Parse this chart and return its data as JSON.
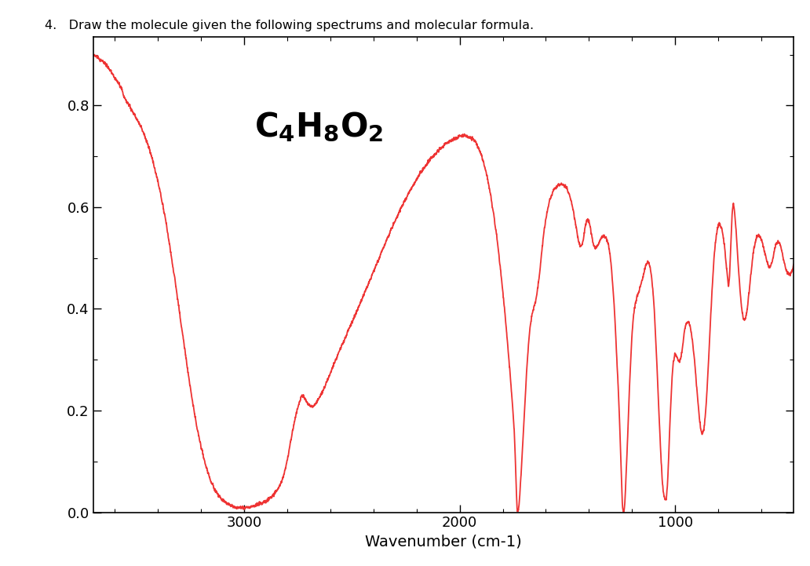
{
  "title": "4.   Draw the molecule given the following spectrums and molecular formula.",
  "xlabel": "Wavenumber (cm-1)",
  "line_color": "#EE3333",
  "background_color": "#ffffff",
  "xlim": [
    3700,
    450
  ],
  "ylim": [
    0.0,
    0.935
  ],
  "yticks": [
    0.0,
    0.2,
    0.4,
    0.6,
    0.8
  ],
  "xticks": [
    3000,
    2000,
    1000
  ],
  "keypoints": [
    [
      3700,
      0.9
    ],
    [
      3680,
      0.895
    ],
    [
      3650,
      0.885
    ],
    [
      3620,
      0.87
    ],
    [
      3600,
      0.855
    ],
    [
      3570,
      0.835
    ],
    [
      3550,
      0.81
    ],
    [
      3520,
      0.79
    ],
    [
      3500,
      0.775
    ],
    [
      3480,
      0.76
    ],
    [
      3460,
      0.74
    ],
    [
      3440,
      0.715
    ],
    [
      3420,
      0.685
    ],
    [
      3400,
      0.65
    ],
    [
      3380,
      0.61
    ],
    [
      3360,
      0.565
    ],
    [
      3340,
      0.51
    ],
    [
      3320,
      0.455
    ],
    [
      3300,
      0.395
    ],
    [
      3280,
      0.335
    ],
    [
      3260,
      0.275
    ],
    [
      3240,
      0.22
    ],
    [
      3220,
      0.17
    ],
    [
      3200,
      0.13
    ],
    [
      3180,
      0.095
    ],
    [
      3160,
      0.068
    ],
    [
      3140,
      0.048
    ],
    [
      3120,
      0.034
    ],
    [
      3100,
      0.024
    ],
    [
      3080,
      0.017
    ],
    [
      3060,
      0.013
    ],
    [
      3040,
      0.01
    ],
    [
      3020,
      0.009
    ],
    [
      3000,
      0.009
    ],
    [
      2980,
      0.01
    ],
    [
      2960,
      0.012
    ],
    [
      2950,
      0.013
    ],
    [
      2940,
      0.015
    ],
    [
      2930,
      0.017
    ],
    [
      2920,
      0.018
    ],
    [
      2910,
      0.019
    ],
    [
      2900,
      0.021
    ],
    [
      2890,
      0.024
    ],
    [
      2880,
      0.027
    ],
    [
      2870,
      0.031
    ],
    [
      2860,
      0.036
    ],
    [
      2850,
      0.041
    ],
    [
      2840,
      0.048
    ],
    [
      2830,
      0.057
    ],
    [
      2820,
      0.068
    ],
    [
      2810,
      0.083
    ],
    [
      2800,
      0.102
    ],
    [
      2790,
      0.124
    ],
    [
      2780,
      0.148
    ],
    [
      2770,
      0.17
    ],
    [
      2760,
      0.191
    ],
    [
      2750,
      0.208
    ],
    [
      2745,
      0.215
    ],
    [
      2740,
      0.221
    ],
    [
      2735,
      0.225
    ],
    [
      2730,
      0.227
    ],
    [
      2725,
      0.228
    ],
    [
      2720,
      0.226
    ],
    [
      2715,
      0.222
    ],
    [
      2710,
      0.218
    ],
    [
      2705,
      0.214
    ],
    [
      2700,
      0.211
    ],
    [
      2690,
      0.208
    ],
    [
      2680,
      0.208
    ],
    [
      2670,
      0.212
    ],
    [
      2660,
      0.218
    ],
    [
      2650,
      0.226
    ],
    [
      2640,
      0.234
    ],
    [
      2630,
      0.243
    ],
    [
      2620,
      0.253
    ],
    [
      2610,
      0.263
    ],
    [
      2600,
      0.274
    ],
    [
      2580,
      0.295
    ],
    [
      2560,
      0.315
    ],
    [
      2540,
      0.334
    ],
    [
      2520,
      0.354
    ],
    [
      2500,
      0.373
    ],
    [
      2480,
      0.393
    ],
    [
      2460,
      0.413
    ],
    [
      2440,
      0.433
    ],
    [
      2420,
      0.453
    ],
    [
      2400,
      0.473
    ],
    [
      2380,
      0.494
    ],
    [
      2360,
      0.514
    ],
    [
      2340,
      0.534
    ],
    [
      2320,
      0.554
    ],
    [
      2300,
      0.573
    ],
    [
      2280,
      0.591
    ],
    [
      2260,
      0.609
    ],
    [
      2240,
      0.625
    ],
    [
      2220,
      0.64
    ],
    [
      2200,
      0.655
    ],
    [
      2180,
      0.668
    ],
    [
      2160,
      0.68
    ],
    [
      2140,
      0.692
    ],
    [
      2120,
      0.702
    ],
    [
      2100,
      0.711
    ],
    [
      2080,
      0.719
    ],
    [
      2060,
      0.726
    ],
    [
      2040,
      0.731
    ],
    [
      2020,
      0.736
    ],
    [
      2000,
      0.739
    ],
    [
      1980,
      0.74
    ],
    [
      1960,
      0.739
    ],
    [
      1950,
      0.738
    ],
    [
      1940,
      0.735
    ],
    [
      1930,
      0.73
    ],
    [
      1920,
      0.723
    ],
    [
      1910,
      0.714
    ],
    [
      1900,
      0.703
    ],
    [
      1890,
      0.689
    ],
    [
      1880,
      0.673
    ],
    [
      1870,
      0.654
    ],
    [
      1860,
      0.632
    ],
    [
      1850,
      0.607
    ],
    [
      1840,
      0.579
    ],
    [
      1830,
      0.548
    ],
    [
      1820,
      0.514
    ],
    [
      1810,
      0.476
    ],
    [
      1800,
      0.435
    ],
    [
      1790,
      0.391
    ],
    [
      1780,
      0.344
    ],
    [
      1770,
      0.293
    ],
    [
      1760,
      0.24
    ],
    [
      1755,
      0.212
    ],
    [
      1750,
      0.182
    ],
    [
      1748,
      0.168
    ],
    [
      1746,
      0.152
    ],
    [
      1744,
      0.132
    ],
    [
      1742,
      0.108
    ],
    [
      1740,
      0.08
    ],
    [
      1738,
      0.052
    ],
    [
      1736,
      0.028
    ],
    [
      1734,
      0.012
    ],
    [
      1732,
      0.004
    ],
    [
      1730,
      0.002
    ],
    [
      1728,
      0.003
    ],
    [
      1726,
      0.008
    ],
    [
      1724,
      0.016
    ],
    [
      1722,
      0.028
    ],
    [
      1720,
      0.043
    ],
    [
      1715,
      0.076
    ],
    [
      1710,
      0.113
    ],
    [
      1705,
      0.152
    ],
    [
      1700,
      0.192
    ],
    [
      1695,
      0.233
    ],
    [
      1690,
      0.271
    ],
    [
      1685,
      0.305
    ],
    [
      1680,
      0.334
    ],
    [
      1675,
      0.357
    ],
    [
      1670,
      0.374
    ],
    [
      1665,
      0.387
    ],
    [
      1660,
      0.396
    ],
    [
      1655,
      0.404
    ],
    [
      1650,
      0.412
    ],
    [
      1645,
      0.422
    ],
    [
      1640,
      0.434
    ],
    [
      1635,
      0.449
    ],
    [
      1630,
      0.467
    ],
    [
      1625,
      0.487
    ],
    [
      1620,
      0.508
    ],
    [
      1615,
      0.528
    ],
    [
      1610,
      0.547
    ],
    [
      1605,
      0.563
    ],
    [
      1600,
      0.577
    ],
    [
      1590,
      0.6
    ],
    [
      1580,
      0.617
    ],
    [
      1570,
      0.628
    ],
    [
      1560,
      0.636
    ],
    [
      1550,
      0.641
    ],
    [
      1540,
      0.644
    ],
    [
      1530,
      0.645
    ],
    [
      1520,
      0.644
    ],
    [
      1510,
      0.64
    ],
    [
      1500,
      0.633
    ],
    [
      1490,
      0.622
    ],
    [
      1480,
      0.607
    ],
    [
      1470,
      0.586
    ],
    [
      1460,
      0.561
    ],
    [
      1455,
      0.548
    ],
    [
      1450,
      0.536
    ],
    [
      1445,
      0.527
    ],
    [
      1440,
      0.522
    ],
    [
      1435,
      0.523
    ],
    [
      1430,
      0.53
    ],
    [
      1425,
      0.541
    ],
    [
      1420,
      0.554
    ],
    [
      1415,
      0.566
    ],
    [
      1410,
      0.574
    ],
    [
      1405,
      0.575
    ],
    [
      1400,
      0.572
    ],
    [
      1395,
      0.563
    ],
    [
      1390,
      0.551
    ],
    [
      1385,
      0.538
    ],
    [
      1380,
      0.527
    ],
    [
      1375,
      0.521
    ],
    [
      1370,
      0.519
    ],
    [
      1365,
      0.521
    ],
    [
      1360,
      0.525
    ],
    [
      1355,
      0.53
    ],
    [
      1350,
      0.534
    ],
    [
      1345,
      0.538
    ],
    [
      1340,
      0.541
    ],
    [
      1335,
      0.543
    ],
    [
      1330,
      0.543
    ],
    [
      1325,
      0.541
    ],
    [
      1320,
      0.538
    ],
    [
      1315,
      0.533
    ],
    [
      1310,
      0.525
    ],
    [
      1305,
      0.513
    ],
    [
      1300,
      0.497
    ],
    [
      1295,
      0.476
    ],
    [
      1290,
      0.45
    ],
    [
      1285,
      0.418
    ],
    [
      1280,
      0.381
    ],
    [
      1275,
      0.339
    ],
    [
      1270,
      0.294
    ],
    [
      1265,
      0.247
    ],
    [
      1260,
      0.2
    ],
    [
      1258,
      0.178
    ],
    [
      1256,
      0.153
    ],
    [
      1254,
      0.126
    ],
    [
      1252,
      0.097
    ],
    [
      1250,
      0.068
    ],
    [
      1248,
      0.044
    ],
    [
      1246,
      0.024
    ],
    [
      1244,
      0.01
    ],
    [
      1242,
      0.003
    ],
    [
      1240,
      0.001
    ],
    [
      1238,
      0.002
    ],
    [
      1236,
      0.007
    ],
    [
      1234,
      0.018
    ],
    [
      1232,
      0.033
    ],
    [
      1230,
      0.052
    ],
    [
      1225,
      0.102
    ],
    [
      1220,
      0.157
    ],
    [
      1215,
      0.214
    ],
    [
      1210,
      0.268
    ],
    [
      1205,
      0.315
    ],
    [
      1200,
      0.352
    ],
    [
      1195,
      0.379
    ],
    [
      1190,
      0.398
    ],
    [
      1185,
      0.411
    ],
    [
      1180,
      0.42
    ],
    [
      1175,
      0.427
    ],
    [
      1170,
      0.433
    ],
    [
      1165,
      0.44
    ],
    [
      1160,
      0.447
    ],
    [
      1155,
      0.455
    ],
    [
      1150,
      0.463
    ],
    [
      1145,
      0.472
    ],
    [
      1140,
      0.48
    ],
    [
      1135,
      0.487
    ],
    [
      1130,
      0.491
    ],
    [
      1125,
      0.491
    ],
    [
      1120,
      0.487
    ],
    [
      1115,
      0.478
    ],
    [
      1110,
      0.464
    ],
    [
      1105,
      0.443
    ],
    [
      1100,
      0.416
    ],
    [
      1095,
      0.381
    ],
    [
      1090,
      0.34
    ],
    [
      1085,
      0.293
    ],
    [
      1080,
      0.242
    ],
    [
      1075,
      0.19
    ],
    [
      1070,
      0.141
    ],
    [
      1065,
      0.098
    ],
    [
      1060,
      0.063
    ],
    [
      1055,
      0.04
    ],
    [
      1050,
      0.028
    ],
    [
      1048,
      0.025
    ],
    [
      1046,
      0.024
    ],
    [
      1044,
      0.025
    ],
    [
      1042,
      0.028
    ],
    [
      1040,
      0.034
    ],
    [
      1038,
      0.043
    ],
    [
      1036,
      0.056
    ],
    [
      1034,
      0.072
    ],
    [
      1032,
      0.092
    ],
    [
      1030,
      0.114
    ],
    [
      1025,
      0.17
    ],
    [
      1020,
      0.22
    ],
    [
      1015,
      0.261
    ],
    [
      1010,
      0.29
    ],
    [
      1005,
      0.305
    ],
    [
      1000,
      0.31
    ],
    [
      995,
      0.308
    ],
    [
      990,
      0.303
    ],
    [
      985,
      0.298
    ],
    [
      980,
      0.296
    ],
    [
      975,
      0.301
    ],
    [
      970,
      0.313
    ],
    [
      965,
      0.33
    ],
    [
      960,
      0.347
    ],
    [
      955,
      0.361
    ],
    [
      950,
      0.37
    ],
    [
      945,
      0.374
    ],
    [
      940,
      0.374
    ],
    [
      935,
      0.37
    ],
    [
      930,
      0.362
    ],
    [
      925,
      0.35
    ],
    [
      920,
      0.335
    ],
    [
      915,
      0.317
    ],
    [
      910,
      0.295
    ],
    [
      905,
      0.27
    ],
    [
      900,
      0.244
    ],
    [
      895,
      0.218
    ],
    [
      890,
      0.194
    ],
    [
      885,
      0.174
    ],
    [
      880,
      0.16
    ],
    [
      875,
      0.154
    ],
    [
      870,
      0.157
    ],
    [
      865,
      0.17
    ],
    [
      860,
      0.192
    ],
    [
      855,
      0.222
    ],
    [
      850,
      0.259
    ],
    [
      845,
      0.3
    ],
    [
      840,
      0.344
    ],
    [
      835,
      0.388
    ],
    [
      830,
      0.43
    ],
    [
      825,
      0.467
    ],
    [
      820,
      0.499
    ],
    [
      815,
      0.524
    ],
    [
      810,
      0.543
    ],
    [
      805,
      0.556
    ],
    [
      800,
      0.563
    ],
    [
      795,
      0.566
    ],
    [
      790,
      0.564
    ],
    [
      785,
      0.558
    ],
    [
      780,
      0.548
    ],
    [
      775,
      0.534
    ],
    [
      770,
      0.516
    ],
    [
      765,
      0.495
    ],
    [
      760,
      0.472
    ],
    [
      758,
      0.462
    ],
    [
      756,
      0.453
    ],
    [
      754,
      0.448
    ],
    [
      752,
      0.447
    ],
    [
      750,
      0.452
    ],
    [
      748,
      0.464
    ],
    [
      746,
      0.482
    ],
    [
      744,
      0.505
    ],
    [
      742,
      0.529
    ],
    [
      740,
      0.553
    ],
    [
      738,
      0.573
    ],
    [
      736,
      0.588
    ],
    [
      734,
      0.598
    ],
    [
      732,
      0.603
    ],
    [
      730,
      0.604
    ],
    [
      728,
      0.601
    ],
    [
      726,
      0.596
    ],
    [
      724,
      0.588
    ],
    [
      722,
      0.578
    ],
    [
      720,
      0.566
    ],
    [
      715,
      0.535
    ],
    [
      710,
      0.502
    ],
    [
      705,
      0.469
    ],
    [
      700,
      0.439
    ],
    [
      695,
      0.414
    ],
    [
      690,
      0.395
    ],
    [
      685,
      0.383
    ],
    [
      680,
      0.378
    ],
    [
      675,
      0.38
    ],
    [
      670,
      0.389
    ],
    [
      665,
      0.404
    ],
    [
      660,
      0.423
    ],
    [
      655,
      0.444
    ],
    [
      650,
      0.465
    ],
    [
      645,
      0.485
    ],
    [
      640,
      0.503
    ],
    [
      635,
      0.518
    ],
    [
      630,
      0.529
    ],
    [
      625,
      0.537
    ],
    [
      620,
      0.542
    ],
    [
      615,
      0.544
    ],
    [
      610,
      0.543
    ],
    [
      605,
      0.54
    ],
    [
      600,
      0.535
    ],
    [
      595,
      0.528
    ],
    [
      590,
      0.52
    ],
    [
      585,
      0.511
    ],
    [
      580,
      0.502
    ],
    [
      575,
      0.493
    ],
    [
      570,
      0.486
    ],
    [
      565,
      0.482
    ],
    [
      560,
      0.482
    ],
    [
      555,
      0.486
    ],
    [
      550,
      0.494
    ],
    [
      545,
      0.504
    ],
    [
      540,
      0.515
    ],
    [
      535,
      0.524
    ],
    [
      530,
      0.53
    ],
    [
      525,
      0.533
    ],
    [
      520,
      0.532
    ],
    [
      515,
      0.528
    ],
    [
      510,
      0.521
    ],
    [
      505,
      0.512
    ],
    [
      500,
      0.502
    ],
    [
      495,
      0.492
    ],
    [
      490,
      0.483
    ],
    [
      485,
      0.476
    ],
    [
      480,
      0.471
    ],
    [
      475,
      0.468
    ],
    [
      470,
      0.467
    ],
    [
      465,
      0.469
    ],
    [
      460,
      0.473
    ],
    [
      455,
      0.479
    ],
    [
      450,
      0.487
    ]
  ]
}
